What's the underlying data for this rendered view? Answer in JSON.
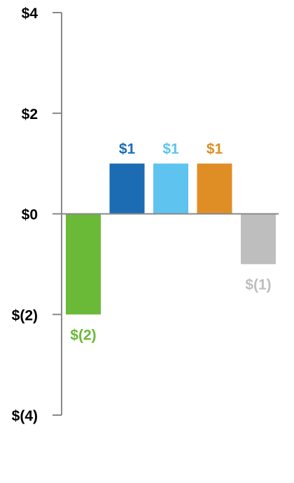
{
  "chart_data": {
    "type": "bar",
    "title": "",
    "xlabel": "",
    "ylabel": "",
    "ylim": [
      -4,
      4
    ],
    "yticks": [
      4,
      2,
      0,
      -2,
      -4
    ],
    "ytick_labels": [
      "$4",
      "$2",
      "$0",
      "$(2)",
      "$(4)"
    ],
    "values": [
      -2,
      1,
      1,
      1,
      -1
    ],
    "data_labels": [
      "$(2)",
      "$1",
      "$1",
      "$1",
      "$(1)"
    ],
    "colors": [
      "#6ab937",
      "#1c6cb4",
      "#5ec4ef",
      "#df8e26",
      "#bebebf"
    ],
    "axis_color": "#888888",
    "grid": false,
    "legend": "none"
  }
}
